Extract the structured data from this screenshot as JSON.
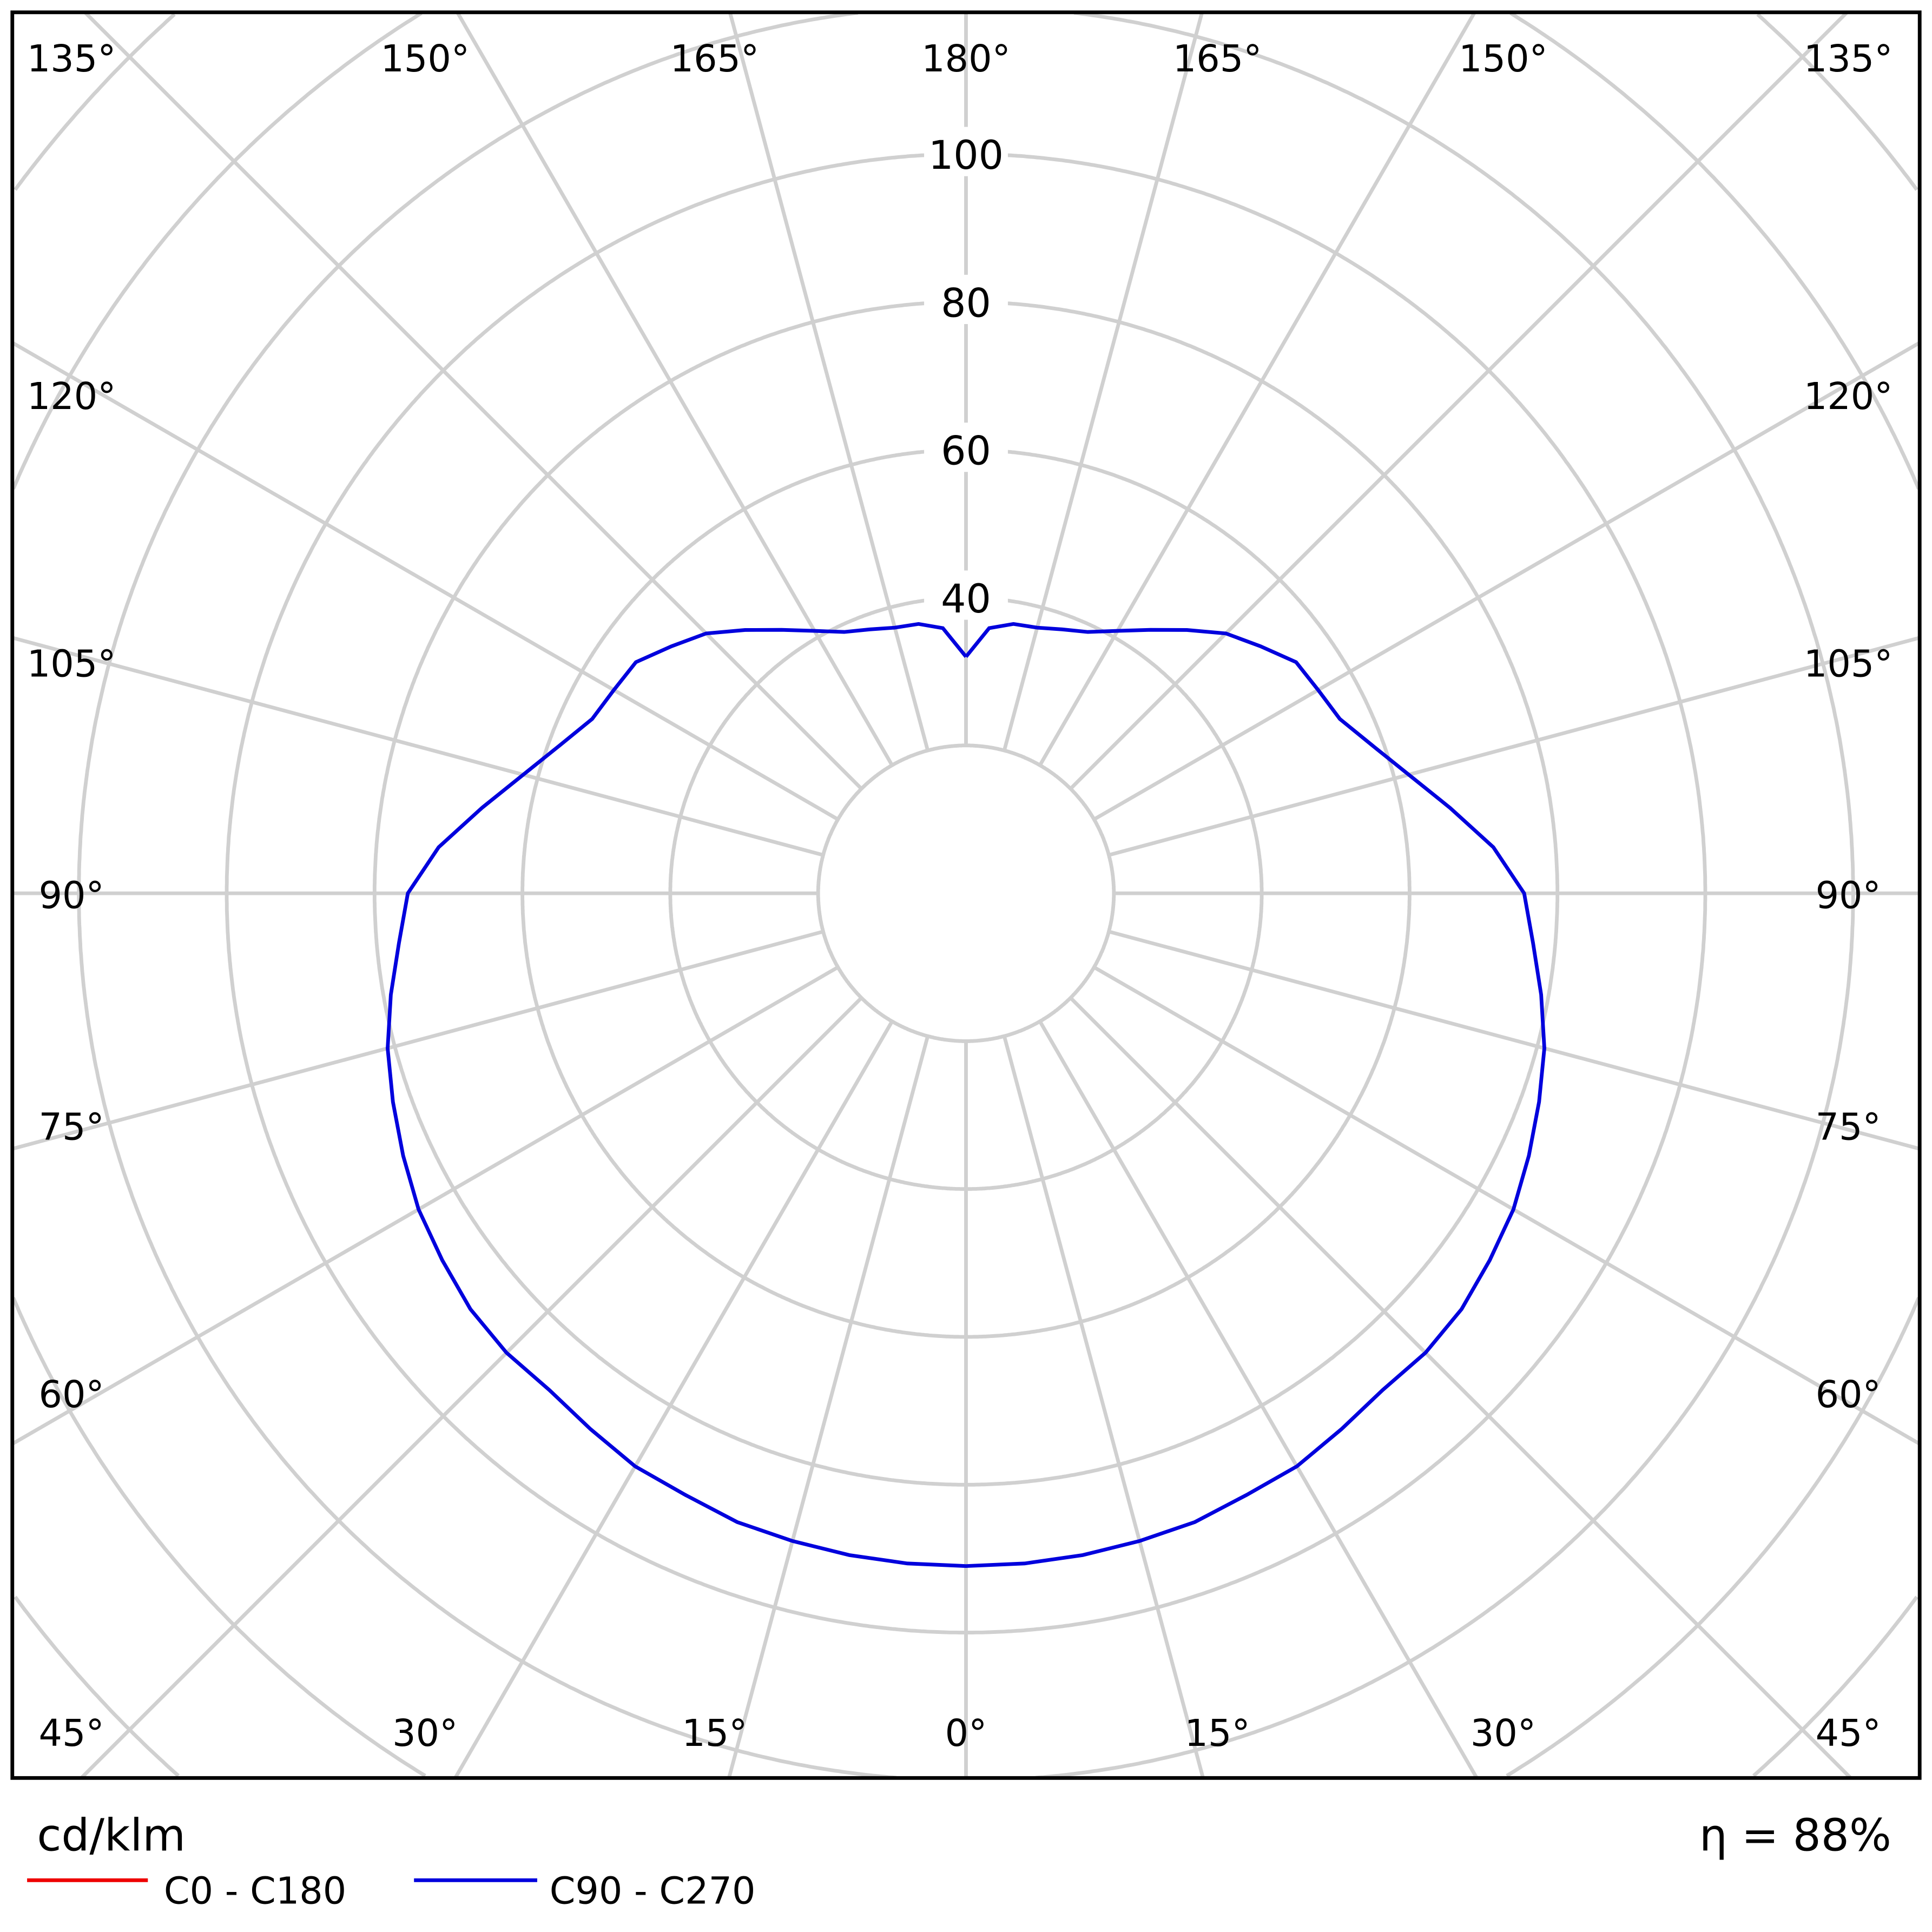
{
  "chart_data": {
    "type": "polar-line",
    "unit_label": "cd/klm",
    "efficiency_label": "η = 88%",
    "radial_ticks": [
      "40",
      "60",
      "80",
      "100"
    ],
    "radial_range": [
      0,
      120
    ],
    "radial_rings": [
      20,
      40,
      60,
      80,
      100,
      120,
      140,
      160,
      180
    ],
    "grid": true,
    "angle_labels": {
      "top": [
        "135°",
        "150°",
        "165°",
        "180°",
        "165°",
        "150°",
        "135°"
      ],
      "left": [
        "120°",
        "105°",
        "90°",
        "75°",
        "60°"
      ],
      "right": [
        "120°",
        "105°",
        "90°",
        "75°",
        "60°"
      ],
      "bottom": [
        "45°",
        "30°",
        "15°",
        "0°",
        "15°",
        "30°",
        "45°"
      ]
    },
    "angles": [
      0,
      5,
      10,
      15,
      20,
      25,
      30,
      35,
      40,
      45,
      50,
      55,
      60,
      65,
      70,
      75,
      80,
      85,
      90,
      95,
      100,
      105,
      110,
      115,
      120,
      125,
      130,
      135,
      140,
      145,
      150,
      155,
      160,
      165,
      170,
      175,
      180
    ],
    "series": [
      {
        "name": "C0 - C180",
        "color": "#ee0000",
        "values": null
      },
      {
        "name": "C90 - C270",
        "color": "#0000dd",
        "values": [
          91,
          91,
          90.9,
          90.7,
          90.5,
          89.8,
          89.5,
          88.5,
          87.7,
          87.9,
          87.5,
          86.5,
          85.5,
          84,
          82.5,
          81,
          79,
          77,
          75.5,
          71.6,
          66.5,
          62,
          58.5,
          55.8,
          55,
          54.5,
          52,
          49.7,
          46.5,
          43.5,
          41,
          39,
          38,
          37.2,
          37,
          36,
          32
        ]
      }
    ],
    "legend_position": "bottom-left"
  }
}
